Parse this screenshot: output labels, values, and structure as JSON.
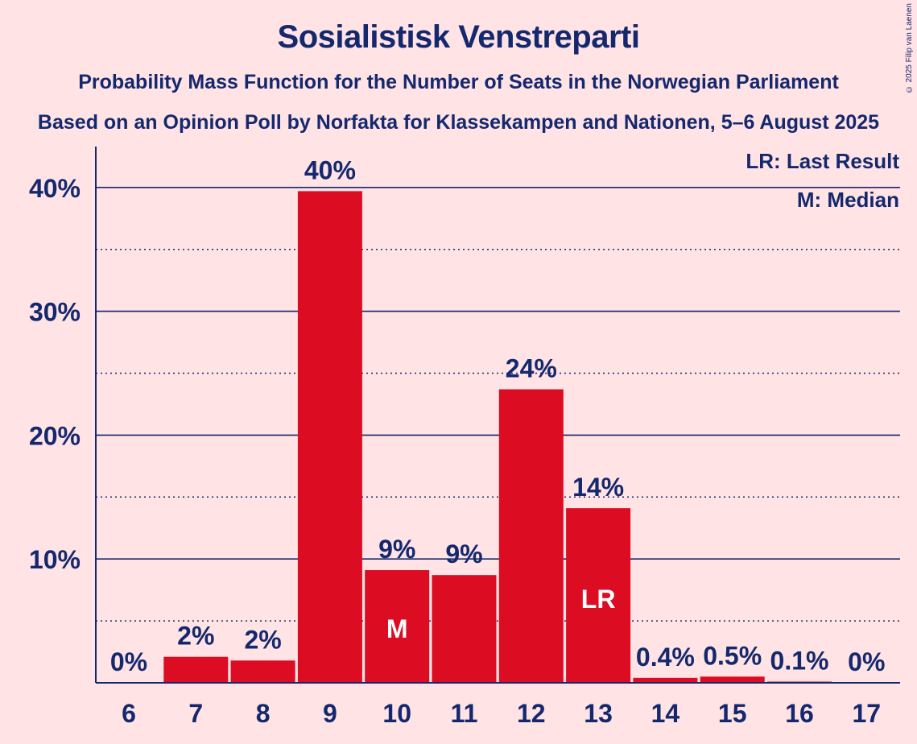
{
  "chart_data": {
    "type": "bar",
    "title": "Sosialistisk Venstreparti",
    "subtitle": "Probability Mass Function for the Number of Seats in the Norwegian Parliament",
    "subtitle2": "Based on an Opinion Poll by Norfakta for Klassekampen and Nationen, 5–6 August 2025",
    "categories": [
      "6",
      "7",
      "8",
      "9",
      "10",
      "11",
      "12",
      "13",
      "14",
      "15",
      "16",
      "17"
    ],
    "values": [
      0,
      2.1,
      1.8,
      39.7,
      9.1,
      8.7,
      23.7,
      14.1,
      0.4,
      0.5,
      0.1,
      0
    ],
    "data_labels": [
      "0%",
      "2%",
      "2%",
      "40%",
      "9%",
      "9%",
      "24%",
      "14%",
      "0.4%",
      "0.5%",
      "0.1%",
      "0%"
    ],
    "bar_markers": [
      {
        "category": "10",
        "text": "M"
      },
      {
        "category": "13",
        "text": "LR"
      }
    ],
    "ylim": [
      0,
      43
    ],
    "yticks": [
      10,
      20,
      30,
      40
    ],
    "ytick_labels": [
      "10%",
      "20%",
      "30%",
      "40%"
    ],
    "minor_gridlines": [
      5,
      15,
      25,
      35
    ],
    "grid": true,
    "legend": [
      "LR: Last Result",
      "M: Median"
    ],
    "legend_position": "top-right",
    "colors": {
      "bar": "#dc0c23",
      "text": "#14286e",
      "background": "#ffe3e5"
    }
  },
  "copyright": "© 2025 Filip van Laenen"
}
